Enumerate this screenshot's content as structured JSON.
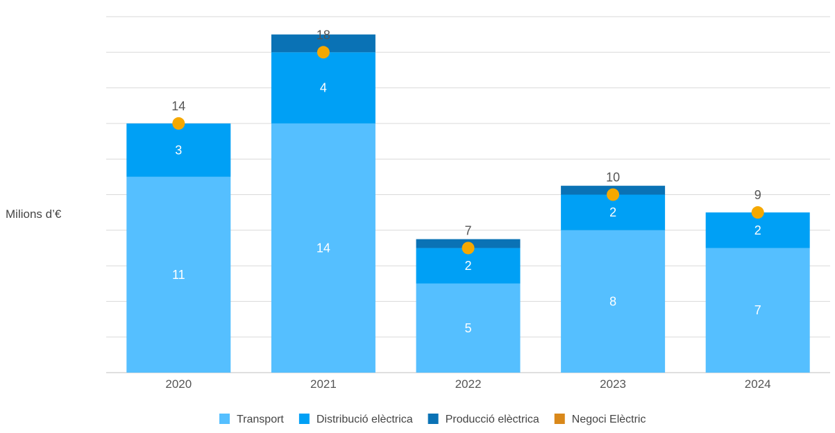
{
  "chart_data": {
    "type": "bar",
    "stacked": true,
    "ylabel": "Milions d’€",
    "xlabel": "",
    "ylim": [
      0,
      20
    ],
    "grid": true,
    "legend_position": "bottom",
    "categories": [
      "2020",
      "2021",
      "2022",
      "2023",
      "2024"
    ],
    "series": [
      {
        "name": "Transport",
        "color": "#55bfff",
        "values": [
          11,
          14,
          5,
          8,
          7
        ],
        "labels": [
          "11",
          "14",
          "5",
          "8",
          "7"
        ]
      },
      {
        "name": "Distribució elèctrica",
        "color": "#00a0f5",
        "values": [
          3,
          4,
          2,
          2,
          2
        ],
        "labels": [
          "3",
          "4",
          "2",
          "2",
          "2"
        ]
      },
      {
        "name": "Producció elèctrica",
        "color": "#0a72b5",
        "values": [
          0,
          1,
          0.5,
          0.5,
          0
        ],
        "labels": [
          "",
          "",
          "",
          "",
          ""
        ]
      },
      {
        "name": "Negoci Elèctric",
        "color": "#d9881a",
        "values": [
          0,
          0,
          0,
          0,
          0
        ],
        "labels": [
          "",
          "",
          "",
          "",
          ""
        ]
      }
    ],
    "totals": {
      "values": [
        14,
        18,
        7,
        10,
        9
      ],
      "labels": [
        "14",
        "18",
        "7",
        "10",
        "9"
      ],
      "marker_color": "#f5a800"
    }
  }
}
